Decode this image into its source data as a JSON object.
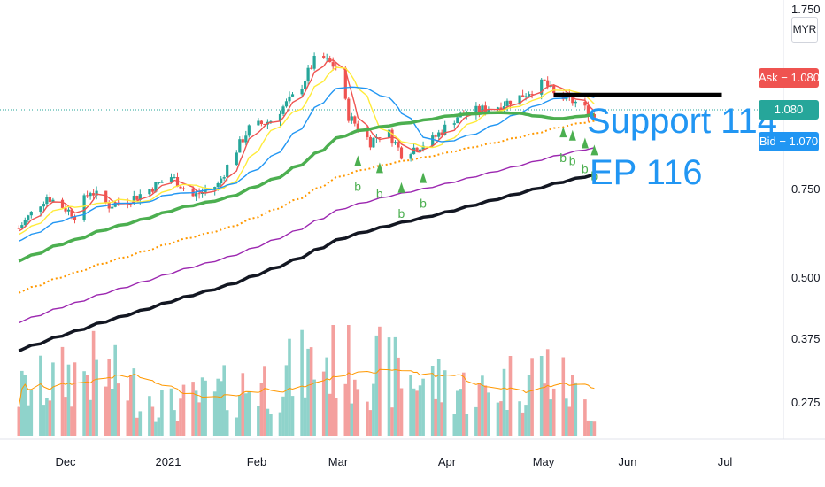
{
  "currency": "MYR",
  "price_tags": {
    "ask": "Ask − 1.080",
    "last": "1.080",
    "bid": "Bid − 1.070"
  },
  "colors": {
    "ask": "#ef5350",
    "last": "#26a69a",
    "bid": "#2196f3",
    "up": "#26a69a",
    "down": "#ef5350",
    "vol_up": "#8fd3cb",
    "vol_down": "#f4a09e"
  },
  "annotations": {
    "note_line1": "Support 114",
    "note_line2": "EP 116"
  },
  "chart_data": {
    "type": "candlestick",
    "scale": "log",
    "x_tick_labels": [
      "Dec",
      "2021",
      "Feb",
      "Mar",
      "Apr",
      "May",
      "Jun",
      "Jul"
    ],
    "y_tick_labels": [
      "1.750",
      "0.750",
      "0.500",
      "0.375",
      "0.275"
    ],
    "y_ticks": [
      1.75,
      0.75,
      0.5,
      0.375,
      0.275
    ],
    "last_price": 1.08,
    "ask": 1.08,
    "bid": 1.07,
    "resistance_level": 1.16,
    "signal_letter": "b",
    "signal_dates": [
      "2021-03-05",
      "2021-03-12",
      "2021-03-19",
      "2021-03-26",
      "2021-05-10",
      "2021-05-13",
      "2021-05-17",
      "2021-05-20"
    ],
    "ohlc_anchors": [
      [
        "2020-11-16",
        0.62
      ],
      [
        "2020-11-25",
        0.72
      ],
      [
        "2020-12-04",
        0.66
      ],
      [
        "2020-12-09",
        0.74
      ],
      [
        "2020-12-15",
        0.69
      ],
      [
        "2020-12-24",
        0.72
      ],
      [
        "2021-01-04",
        0.79
      ],
      [
        "2021-01-11",
        0.72
      ],
      [
        "2021-01-19",
        0.76
      ],
      [
        "2021-01-29",
        0.99
      ],
      [
        "2021-02-05",
        1.03
      ],
      [
        "2021-02-14",
        1.18
      ],
      [
        "2021-02-20",
        1.4
      ],
      [
        "2021-02-26",
        1.32
      ],
      [
        "2021-03-02",
        1.05
      ],
      [
        "2021-03-09",
        0.93
      ],
      [
        "2021-03-14",
        0.99
      ],
      [
        "2021-03-19",
        0.88
      ],
      [
        "2021-03-29",
        0.94
      ],
      [
        "2021-04-06",
        1.05
      ],
      [
        "2021-04-13",
        1.08
      ],
      [
        "2021-04-19",
        1.1
      ],
      [
        "2021-04-26",
        1.15
      ],
      [
        "2021-05-04",
        1.23
      ],
      [
        "2021-05-07",
        1.16
      ],
      [
        "2021-05-14",
        1.12
      ],
      [
        "2021-05-20",
        1.05
      ]
    ],
    "volume_anchors": [
      [
        "2020-11-16",
        0.35
      ],
      [
        "2020-12-09",
        0.55
      ],
      [
        "2021-01-04",
        0.25
      ],
      [
        "2021-02-05",
        0.45
      ],
      [
        "2021-02-26",
        0.65
      ],
      [
        "2021-03-19",
        0.5
      ],
      [
        "2021-04-13",
        0.35
      ],
      [
        "2021-05-04",
        0.55
      ],
      [
        "2021-05-20",
        0.2
      ]
    ],
    "moving_averages": [
      {
        "color": "#ef5350",
        "period": 5
      },
      {
        "color": "#ffeb3b",
        "period": 10
      },
      {
        "color": "#2196f3",
        "period": 20
      },
      {
        "color": "#4caf50",
        "period": 50
      },
      {
        "color": "#ff9800",
        "period": 100
      },
      {
        "color": "#9c27b0",
        "period": 150
      },
      {
        "color": "#131722",
        "period": 200
      }
    ]
  }
}
